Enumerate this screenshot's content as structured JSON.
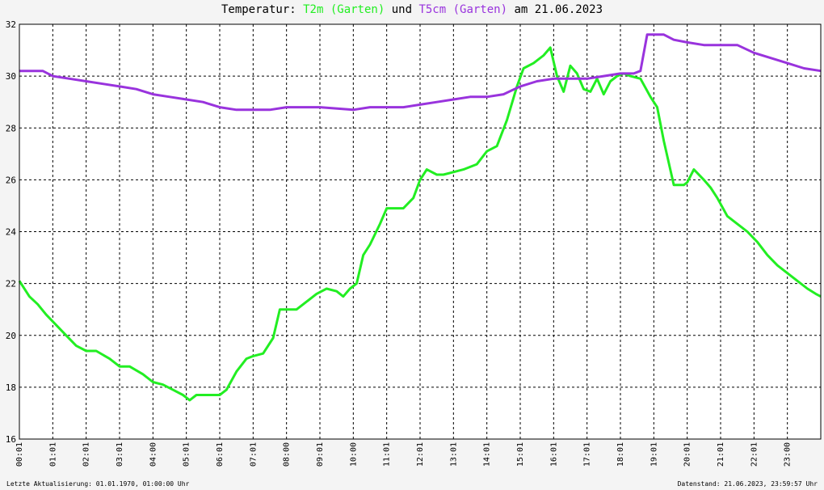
{
  "title": {
    "prefix": "Temperatur: ",
    "series1": "T2m (Garten)",
    "connector": " und ",
    "series2": "T5cm (Garten)",
    "suffix": " am 21.06.2023"
  },
  "footer": {
    "left": "Letzte Aktualisierung: 01.01.1970, 01:00:00 Uhr",
    "right": "Datenstand: 21.06.2023, 23:59:57 Uhr"
  },
  "chart_data": {
    "type": "line",
    "title": "Temperatur: T2m (Garten) und T5cm (Garten) am 21.06.2023",
    "ylim": [
      16,
      32
    ],
    "xlim": [
      0,
      24
    ],
    "grid": true,
    "y_ticks": [
      "16",
      "18",
      "20",
      "22",
      "24",
      "26",
      "28",
      "30",
      "32"
    ],
    "x_ticks": [
      "00:01",
      "01:01",
      "02:01",
      "03:01",
      "04:00",
      "05:01",
      "06:01",
      "07:01",
      "08:00",
      "09:01",
      "10:00",
      "11:01",
      "12:01",
      "13:01",
      "14:01",
      "15:01",
      "16:01",
      "17:01",
      "18:01",
      "19:01",
      "20:01",
      "21:01",
      "22:01",
      "23:00"
    ],
    "series": [
      {
        "name": "T2m (Garten)",
        "color": "#22ee22",
        "x": [
          0,
          0.3,
          0.55,
          0.8,
          1.1,
          1.4,
          1.7,
          2.0,
          2.3,
          2.7,
          3.0,
          3.3,
          3.7,
          4.0,
          4.3,
          4.6,
          4.9,
          5.1,
          5.3,
          5.6,
          6.0,
          6.2,
          6.5,
          6.8,
          7.0,
          7.3,
          7.6,
          7.8,
          8.0,
          8.3,
          8.6,
          8.9,
          9.2,
          9.5,
          9.7,
          9.9,
          10.1,
          10.3,
          10.5,
          10.8,
          11.0,
          11.2,
          11.5,
          11.8,
          12.0,
          12.2,
          12.5,
          12.7,
          13.0,
          13.3,
          13.7,
          14.0,
          14.3,
          14.6,
          14.9,
          15.1,
          15.4,
          15.7,
          15.9,
          16.1,
          16.3,
          16.5,
          16.7,
          16.9,
          17.1,
          17.3,
          17.5,
          17.7,
          17.9,
          18.1,
          18.3,
          18.6,
          18.9,
          19.1,
          19.3,
          19.6,
          19.9,
          20.0,
          20.2,
          20.5,
          20.7,
          20.9,
          21.2,
          21.5,
          21.8,
          22.1,
          22.4,
          22.7,
          23.0,
          23.3,
          23.6,
          23.85,
          24.0
        ],
        "y": [
          22.1,
          21.5,
          21.2,
          20.8,
          20.4,
          20.0,
          19.6,
          19.4,
          19.4,
          19.1,
          18.8,
          18.8,
          18.5,
          18.2,
          18.1,
          17.9,
          17.7,
          17.5,
          17.7,
          17.7,
          17.7,
          17.9,
          18.6,
          19.1,
          19.2,
          19.3,
          19.9,
          21.0,
          21.0,
          21.0,
          21.3,
          21.6,
          21.8,
          21.7,
          21.5,
          21.8,
          22.0,
          23.1,
          23.5,
          24.3,
          24.9,
          24.9,
          24.9,
          25.3,
          26.0,
          26.4,
          26.2,
          26.2,
          26.3,
          26.4,
          26.6,
          27.1,
          27.3,
          28.3,
          29.6,
          30.3,
          30.5,
          30.8,
          31.1,
          30.0,
          29.4,
          30.4,
          30.1,
          29.5,
          29.4,
          29.9,
          29.3,
          29.8,
          30.0,
          30.1,
          30.0,
          29.9,
          29.2,
          28.8,
          27.5,
          25.8,
          25.8,
          25.9,
          26.4,
          26.0,
          25.7,
          25.3,
          24.6,
          24.3,
          24.0,
          23.6,
          23.1,
          22.7,
          22.4,
          22.1,
          21.8,
          21.6,
          21.5
        ]
      },
      {
        "name": "T5cm (Garten)",
        "color": "#9933dd",
        "x": [
          0,
          0.7,
          1.0,
          1.5,
          2.0,
          2.5,
          3.0,
          3.5,
          4.0,
          4.5,
          5.0,
          5.5,
          6.0,
          6.5,
          7.0,
          7.5,
          8.0,
          9.0,
          10.0,
          10.5,
          11.0,
          11.5,
          12.0,
          12.5,
          13.0,
          13.5,
          14.0,
          14.5,
          15.0,
          15.5,
          16.0,
          16.5,
          17.0,
          17.5,
          18.0,
          18.4,
          18.6,
          18.8,
          19.1,
          19.3,
          19.6,
          20.0,
          20.5,
          21.0,
          21.5,
          22.0,
          22.5,
          23.0,
          23.5,
          24.0
        ],
        "y": [
          30.2,
          30.2,
          30.0,
          29.9,
          29.8,
          29.7,
          29.6,
          29.5,
          29.3,
          29.2,
          29.1,
          29.0,
          28.8,
          28.7,
          28.7,
          28.7,
          28.8,
          28.8,
          28.7,
          28.8,
          28.8,
          28.8,
          28.9,
          29.0,
          29.1,
          29.2,
          29.2,
          29.3,
          29.6,
          29.8,
          29.9,
          29.9,
          29.9,
          30.0,
          30.1,
          30.1,
          30.2,
          31.6,
          31.6,
          31.6,
          31.4,
          31.3,
          31.2,
          31.2,
          31.2,
          30.9,
          30.7,
          30.5,
          30.3,
          30.2
        ]
      }
    ]
  }
}
